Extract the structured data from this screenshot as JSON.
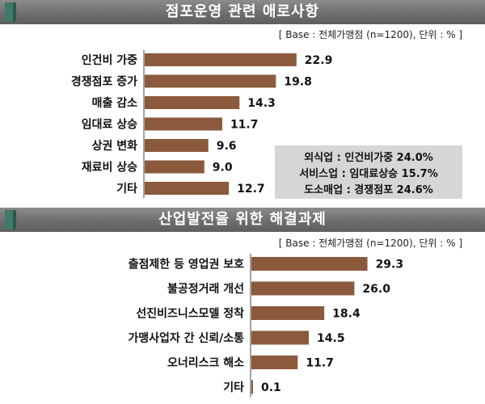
{
  "colors": {
    "bar": "#8b5a3c",
    "header": "#6e6e6e",
    "accent": "#3f7a6a",
    "callout_bg": "#d6d6d6"
  },
  "panel1": {
    "title": "점포운영 관련 애로사항",
    "base": "[ Base : 전체가맹점 (n=1200),  단위 : % ]",
    "callout": [
      "외식업 : 인건비가중  24.0%",
      "서비스업 : 임대료상승  15.7%",
      "도소매업 : 경쟁점포  24.6%"
    ]
  },
  "panel2": {
    "title": "산업발전을 위한 해결과제",
    "base": "[ Base : 전체가맹점 (n=1200),  단위 : % ]"
  },
  "chart_data": [
    {
      "type": "bar",
      "title": "점포운영 관련 애로사항",
      "categories": [
        "인건비 가중",
        "경쟁점포 증가",
        "매출 감소",
        "임대료 상승",
        "상권 변화",
        "재료비 상승",
        "기타"
      ],
      "values": [
        22.9,
        19.8,
        14.3,
        11.7,
        9.6,
        9.0,
        12.7
      ],
      "orientation": "horizontal",
      "unit": "%"
    },
    {
      "type": "bar",
      "title": "산업발전을 위한 해결과제",
      "categories": [
        "출점제한 등 영업권 보호",
        "불공정거래 개선",
        "선진비즈니스모델 정착",
        "가맹사업자 간 신뢰/소통",
        "오너리스크 해소",
        "기타"
      ],
      "values": [
        29.3,
        26.0,
        18.4,
        14.5,
        11.7,
        0.1
      ],
      "orientation": "horizontal",
      "unit": "%"
    }
  ]
}
